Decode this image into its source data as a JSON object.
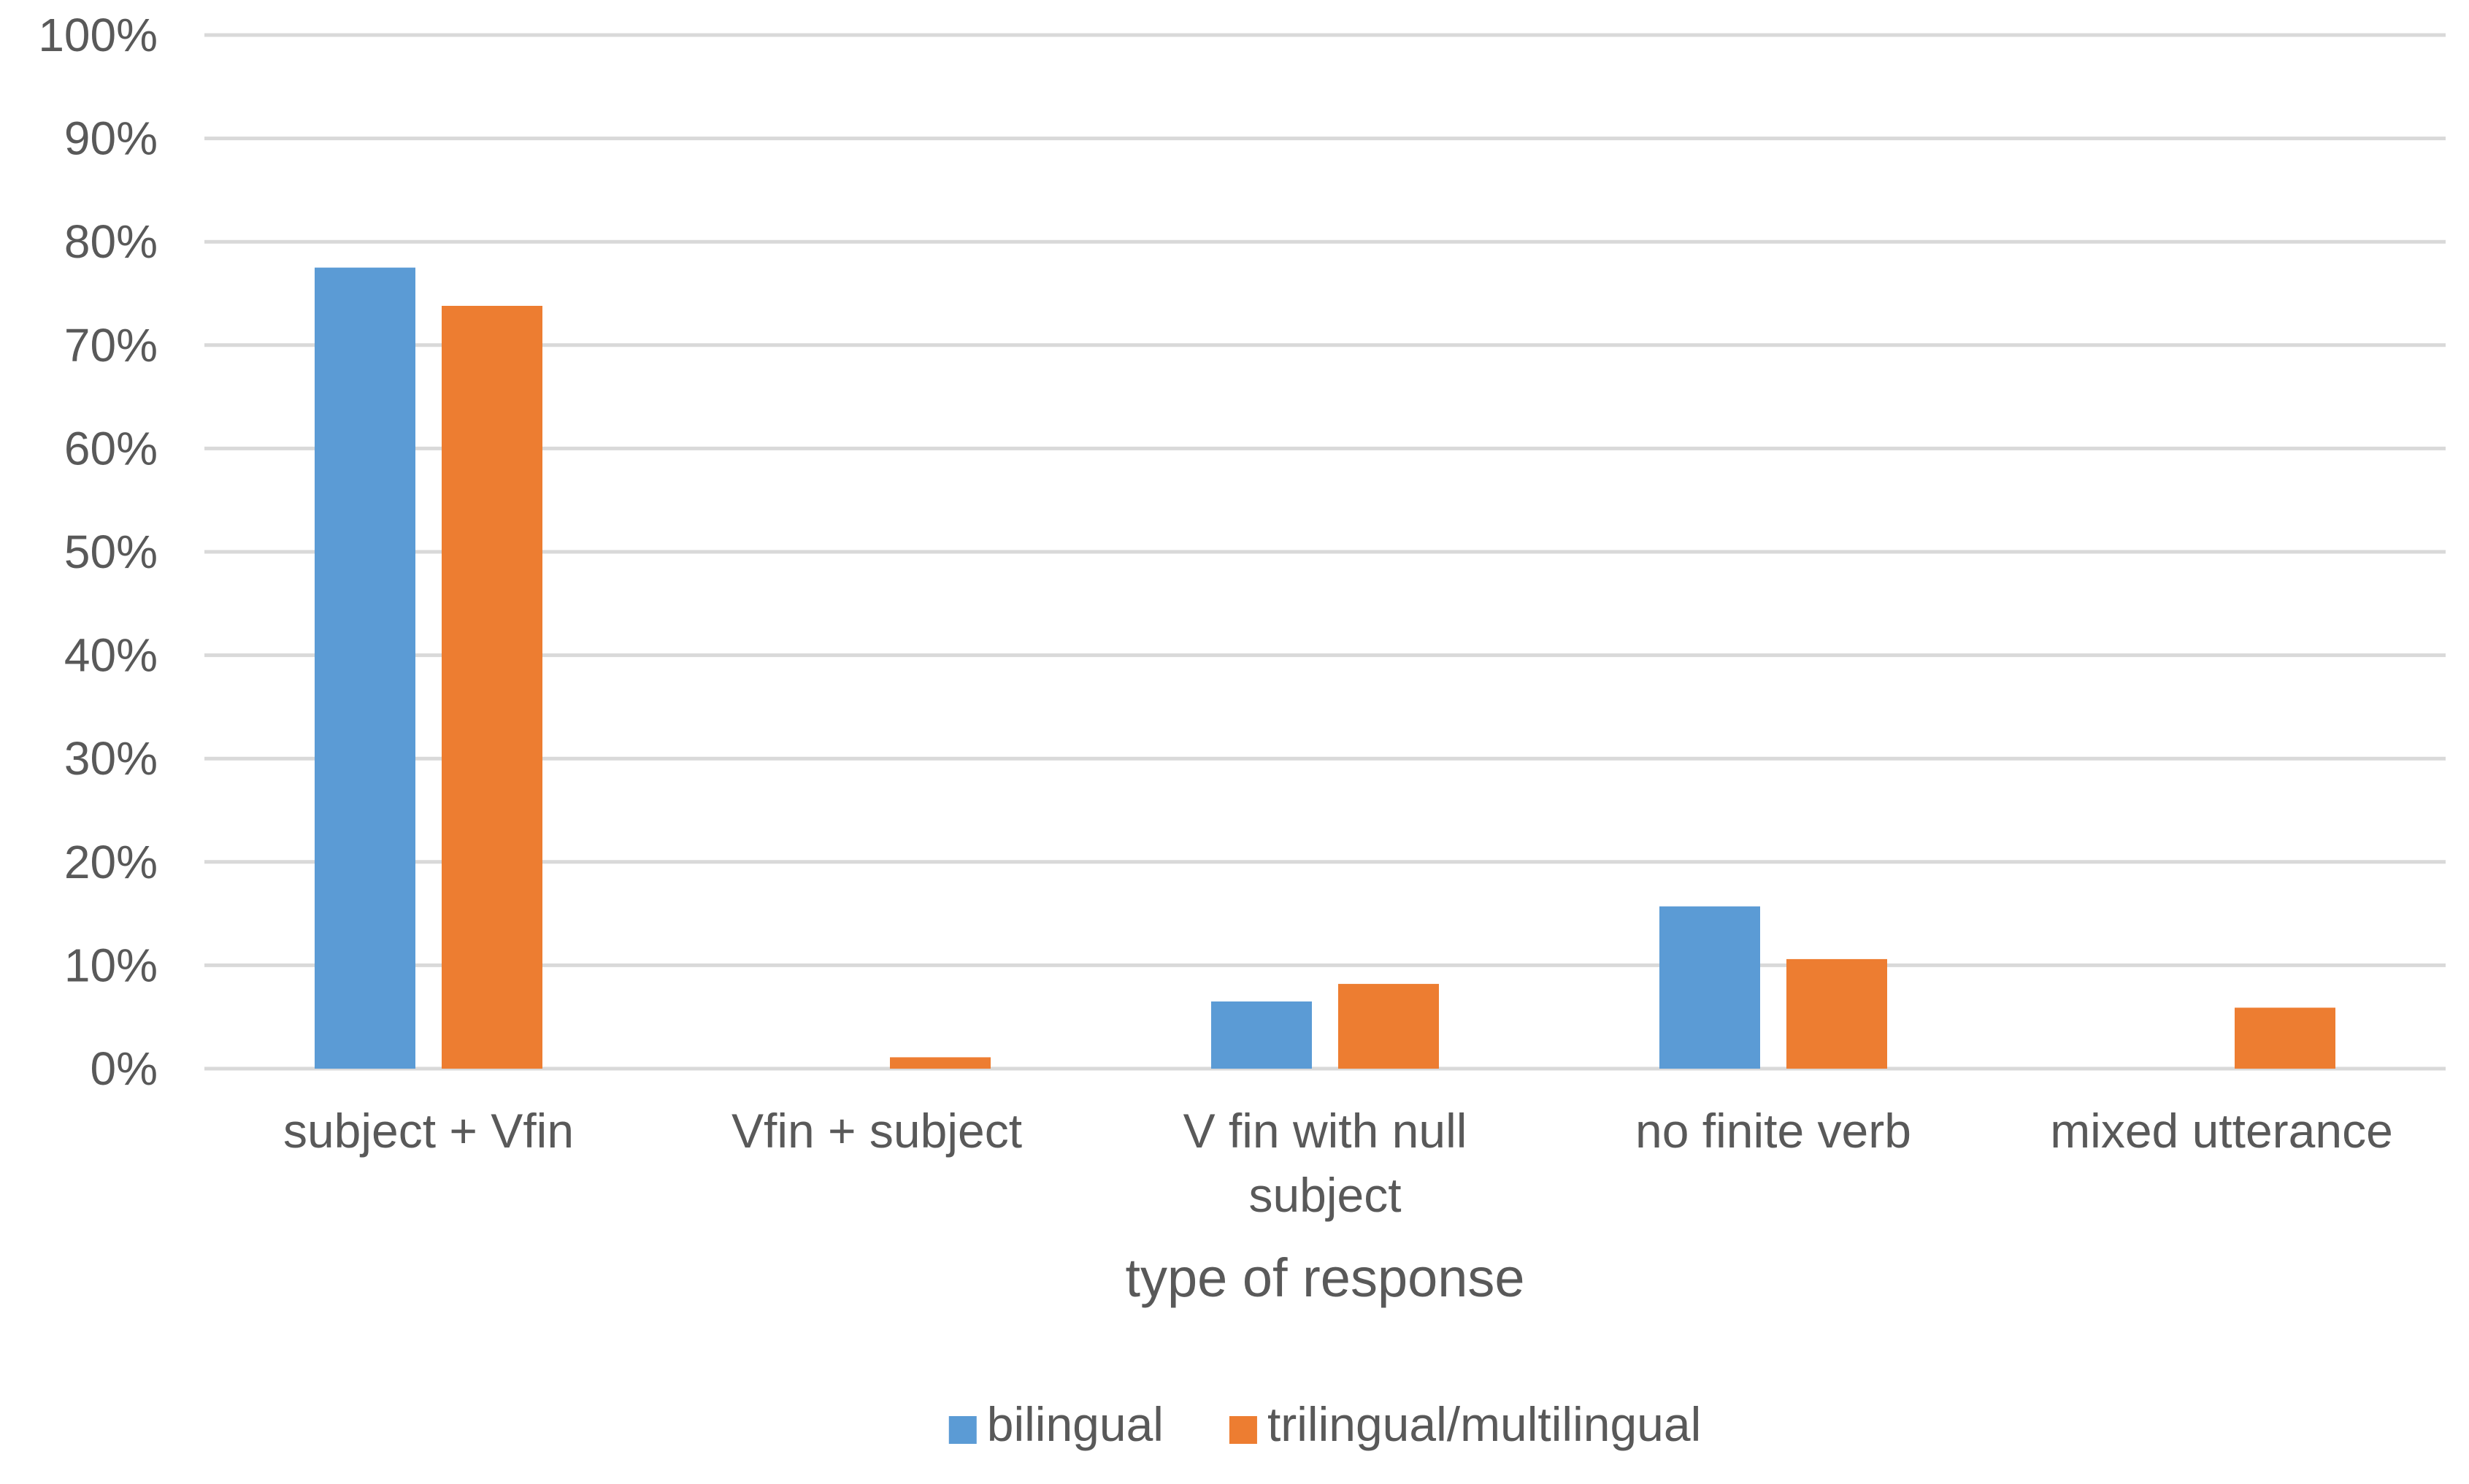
{
  "chart_data": {
    "type": "bar",
    "title": "",
    "xlabel": "type of response",
    "ylabel": "",
    "ylim": [
      0,
      100
    ],
    "yticks": [
      0,
      10,
      20,
      30,
      40,
      50,
      60,
      70,
      80,
      90,
      100
    ],
    "ytick_format": "{v}%",
    "grid": true,
    "legend_position": "bottom",
    "categories": [
      [
        "subject + Vfin"
      ],
      [
        "Vfin + subject"
      ],
      [
        "V fin with null",
        "subject"
      ],
      [
        "no finite verb"
      ],
      [
        "mixed utterance"
      ]
    ],
    "series": [
      {
        "name": "bilingual",
        "color": "#5b9bd5",
        "values": [
          77.5,
          0,
          6.5,
          15.7,
          0
        ]
      },
      {
        "name": "trilingual/multilingual",
        "color": "#ed7d31",
        "values": [
          73.8,
          1.1,
          8.2,
          10.6,
          5.9
        ]
      }
    ]
  }
}
